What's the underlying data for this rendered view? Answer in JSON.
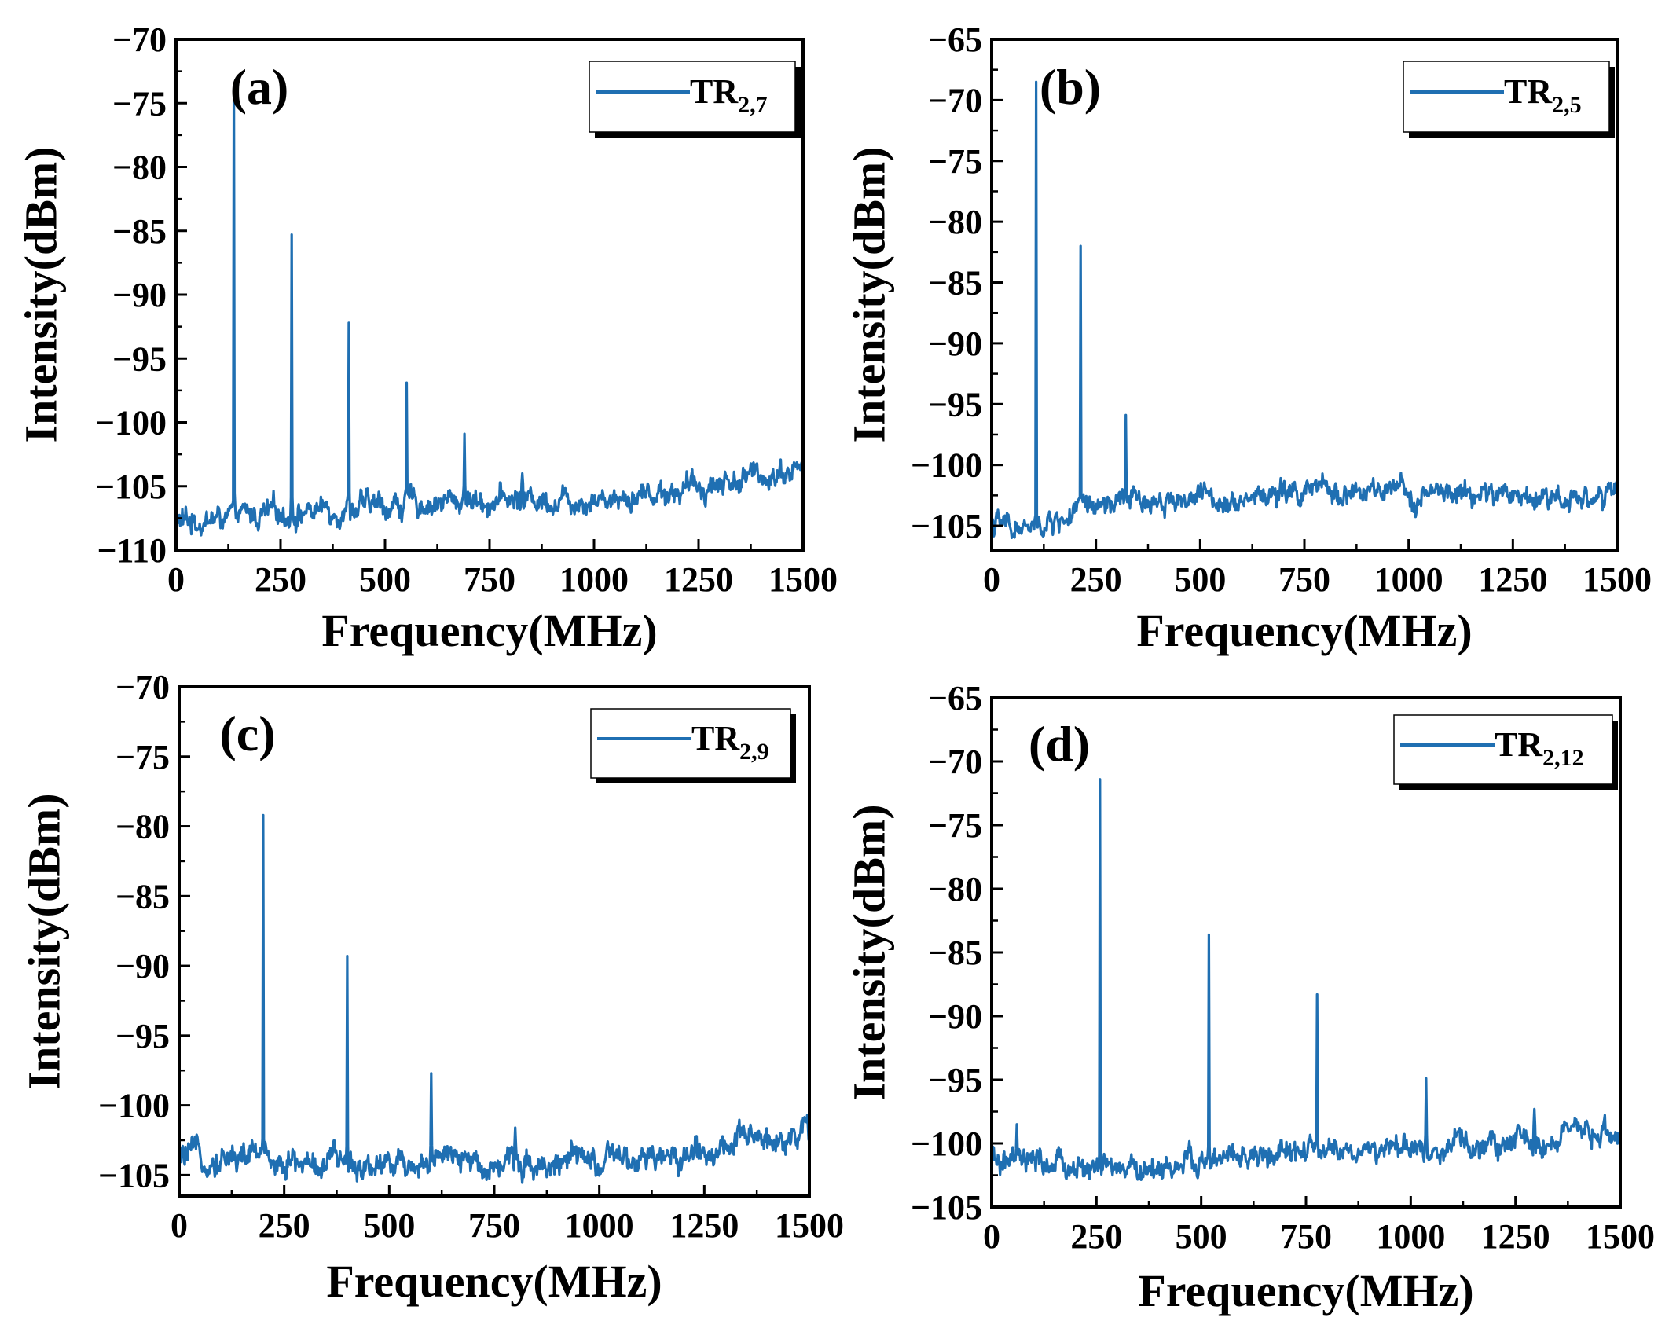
{
  "colors": {
    "series": "#1f6fb2",
    "axis": "#000000"
  },
  "chart_data": [
    {
      "type": "line",
      "panel_label": "(a)",
      "xlabel": "Frequency(MHz)",
      "ylabel": "Intensity(dBm)",
      "xlim": [
        0,
        1500
      ],
      "ylim": [
        -110,
        -70
      ],
      "xticks": [
        0,
        250,
        500,
        750,
        1000,
        1250,
        1500
      ],
      "yticks": [
        -110,
        -105,
        -100,
        -95,
        -90,
        -85,
        -80,
        -75,
        -70
      ],
      "legend": {
        "base": "TR",
        "sub": "2,7",
        "position": "top-right"
      },
      "series": [
        {
          "name": "TR2,7",
          "peaks": [
            {
              "x": 138,
              "y": -73.6
            },
            {
              "x": 276,
              "y": -85.3
            },
            {
              "x": 414,
              "y": -92.2
            },
            {
              "x": 552,
              "y": -96.9
            },
            {
              "x": 690,
              "y": -100.9
            },
            {
              "x": 828,
              "y": -104.0
            }
          ],
          "baseline": [
            {
              "x": 0,
              "y": -107.8
            },
            {
              "x": 200,
              "y": -107.3
            },
            {
              "x": 400,
              "y": -106.7
            },
            {
              "x": 600,
              "y": -106.3
            },
            {
              "x": 800,
              "y": -106.0
            },
            {
              "x": 1000,
              "y": -105.9
            },
            {
              "x": 1200,
              "y": -105.3
            },
            {
              "x": 1400,
              "y": -104.1
            },
            {
              "x": 1500,
              "y": -103.5
            }
          ]
        }
      ]
    },
    {
      "type": "line",
      "panel_label": "(b)",
      "xlabel": "Frequency(MHz)",
      "ylabel": "Intensity(dBm)",
      "xlim": [
        0,
        1500
      ],
      "ylim": [
        -107,
        -65
      ],
      "xticks": [
        0,
        250,
        500,
        750,
        1000,
        1250,
        1500
      ],
      "yticks": [
        -105,
        -100,
        -95,
        -90,
        -85,
        -80,
        -75,
        -70,
        -65
      ],
      "legend": {
        "base": "TR",
        "sub": "2,5",
        "position": "top-right"
      },
      "series": [
        {
          "name": "TR2,5",
          "peaks": [
            {
              "x": 107,
              "y": -68.5
            },
            {
              "x": 214,
              "y": -82.0
            },
            {
              "x": 321,
              "y": -95.9
            }
          ],
          "baseline": [
            {
              "x": 0,
              "y": -104.8
            },
            {
              "x": 100,
              "y": -105.4
            },
            {
              "x": 200,
              "y": -104.0
            },
            {
              "x": 300,
              "y": -103.3
            },
            {
              "x": 400,
              "y": -102.8
            },
            {
              "x": 600,
              "y": -102.6
            },
            {
              "x": 800,
              "y": -102.2
            },
            {
              "x": 1000,
              "y": -102.5
            },
            {
              "x": 1200,
              "y": -102.5
            },
            {
              "x": 1500,
              "y": -102.6
            }
          ]
        }
      ]
    },
    {
      "type": "line",
      "panel_label": "(c)",
      "xlabel": "Frequency(MHz)",
      "ylabel": "Intensity(dBm)",
      "xlim": [
        0,
        1500
      ],
      "ylim": [
        -106.5,
        -70
      ],
      "xticks": [
        0,
        250,
        500,
        750,
        1000,
        1250,
        1500
      ],
      "yticks": [
        -105,
        -100,
        -95,
        -90,
        -85,
        -80,
        -75,
        -70
      ],
      "legend": {
        "base": "TR",
        "sub": "2,9",
        "position": "top-right"
      },
      "series": [
        {
          "name": "TR2,9",
          "peaks": [
            {
              "x": 200,
              "y": -79.2
            },
            {
              "x": 400,
              "y": -89.3
            },
            {
              "x": 600,
              "y": -97.7
            },
            {
              "x": 800,
              "y": -101.6
            },
            {
              "x": 1230,
              "y": -102.4
            }
          ],
          "baseline": [
            {
              "x": 0,
              "y": -103.8
            },
            {
              "x": 200,
              "y": -103.6
            },
            {
              "x": 300,
              "y": -104.2
            },
            {
              "x": 500,
              "y": -104.0
            },
            {
              "x": 700,
              "y": -104.1
            },
            {
              "x": 900,
              "y": -104.0
            },
            {
              "x": 1100,
              "y": -104.2
            },
            {
              "x": 1300,
              "y": -103.0
            },
            {
              "x": 1500,
              "y": -101.8
            }
          ]
        }
      ]
    },
    {
      "type": "line",
      "panel_label": "(d)",
      "xlabel": "Frequency(MHz)",
      "ylabel": "Intensity(dBm)",
      "xlim": [
        0,
        1500
      ],
      "ylim": [
        -105,
        -65
      ],
      "xticks": [
        0,
        250,
        500,
        750,
        1000,
        1250,
        1500
      ],
      "yticks": [
        -105,
        -100,
        -95,
        -90,
        -85,
        -80,
        -75,
        -70,
        -65
      ],
      "legend": {
        "base": "TR",
        "sub": "2,12",
        "position": "top-right"
      },
      "series": [
        {
          "name": "TR2,12",
          "peaks": [
            {
              "x": 259,
              "y": -71.4
            },
            {
              "x": 518,
              "y": -83.6
            },
            {
              "x": 777,
              "y": -88.3
            },
            {
              "x": 1036,
              "y": -94.9
            },
            {
              "x": 1295,
              "y": -97.3
            },
            {
              "x": 60,
              "y": -98.5
            }
          ],
          "baseline": [
            {
              "x": 0,
              "y": -101.5
            },
            {
              "x": 150,
              "y": -101.8
            },
            {
              "x": 300,
              "y": -102.2
            },
            {
              "x": 450,
              "y": -101.7
            },
            {
              "x": 600,
              "y": -101.2
            },
            {
              "x": 800,
              "y": -100.6
            },
            {
              "x": 1000,
              "y": -100.6
            },
            {
              "x": 1200,
              "y": -100.1
            },
            {
              "x": 1400,
              "y": -99.5
            },
            {
              "x": 1500,
              "y": -99.0
            }
          ]
        }
      ]
    }
  ]
}
